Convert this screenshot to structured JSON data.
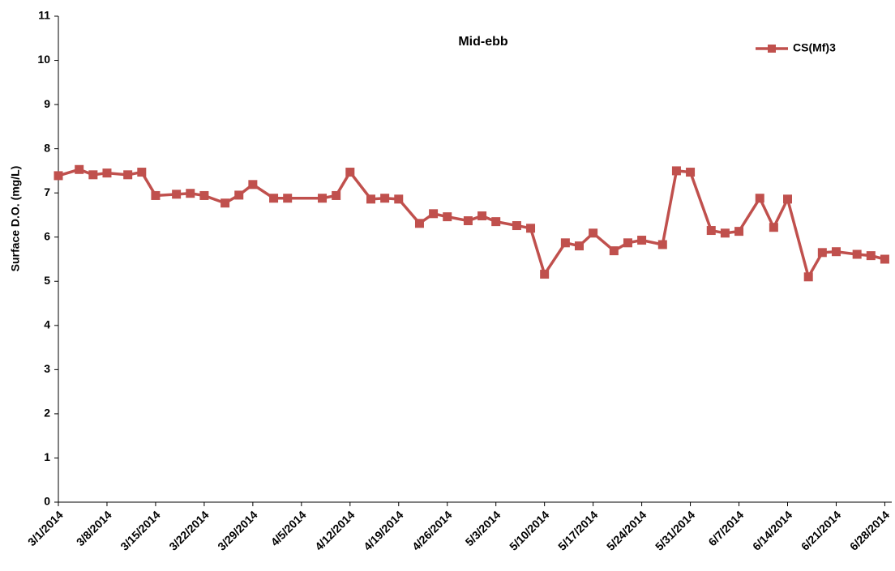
{
  "chart_data": {
    "type": "line",
    "title": "Mid-ebb",
    "y_label": "Surface D.O. (mg/L)",
    "x": [
      "2014-03-01",
      "2014-03-04",
      "2014-03-06",
      "2014-03-08",
      "2014-03-11",
      "2014-03-13",
      "2014-03-15",
      "2014-03-18",
      "2014-03-20",
      "2014-03-22",
      "2014-03-25",
      "2014-03-27",
      "2014-03-29",
      "2014-04-01",
      "2014-04-03",
      "2014-04-08",
      "2014-04-10",
      "2014-04-12",
      "2014-04-15",
      "2014-04-17",
      "2014-04-19",
      "2014-04-22",
      "2014-04-24",
      "2014-04-26",
      "2014-04-29",
      "2014-05-01",
      "2014-05-03",
      "2014-05-06",
      "2014-05-08",
      "2014-05-10",
      "2014-05-13",
      "2014-05-15",
      "2014-05-17",
      "2014-05-20",
      "2014-05-22",
      "2014-05-24",
      "2014-05-27",
      "2014-05-29",
      "2014-05-31",
      "2014-06-03",
      "2014-06-05",
      "2014-06-07",
      "2014-06-10",
      "2014-06-12",
      "2014-06-14",
      "2014-06-17",
      "2014-06-19",
      "2014-06-21",
      "2014-06-24",
      "2014-06-26",
      "2014-06-28"
    ],
    "series": [
      {
        "name": "CS(Mf)3",
        "color": "#c0504d",
        "values": [
          7.39,
          7.53,
          7.41,
          7.45,
          7.41,
          7.47,
          6.94,
          6.97,
          6.99,
          6.94,
          6.77,
          6.95,
          7.19,
          6.88,
          6.88,
          6.88,
          6.94,
          7.47,
          6.86,
          6.88,
          6.86,
          6.31,
          6.53,
          6.46,
          6.37,
          6.48,
          6.35,
          6.26,
          6.2,
          5.16,
          5.87,
          5.8,
          6.09,
          5.69,
          5.87,
          5.93,
          5.83,
          7.5,
          7.47,
          6.15,
          6.09,
          6.13,
          6.88,
          6.22,
          6.86,
          5.1,
          5.65,
          5.67,
          5.61,
          5.58,
          5.5
        ]
      }
    ],
    "xlim": [
      "2014-03-01",
      "2014-06-29"
    ],
    "xticks": [
      {
        "value": "2014-03-01",
        "label": "3/1/2014"
      },
      {
        "value": "2014-03-08",
        "label": "3/8/2014"
      },
      {
        "value": "2014-03-15",
        "label": "3/15/2014"
      },
      {
        "value": "2014-03-22",
        "label": "3/22/2014"
      },
      {
        "value": "2014-03-29",
        "label": "3/29/2014"
      },
      {
        "value": "2014-04-05",
        "label": "4/5/2014"
      },
      {
        "value": "2014-04-12",
        "label": "4/12/2014"
      },
      {
        "value": "2014-04-19",
        "label": "4/19/2014"
      },
      {
        "value": "2014-04-26",
        "label": "4/26/2014"
      },
      {
        "value": "2014-05-03",
        "label": "5/3/2014"
      },
      {
        "value": "2014-05-10",
        "label": "5/10/2014"
      },
      {
        "value": "2014-05-17",
        "label": "5/17/2014"
      },
      {
        "value": "2014-05-24",
        "label": "5/24/2014"
      },
      {
        "value": "2014-05-31",
        "label": "5/31/2014"
      },
      {
        "value": "2014-06-07",
        "label": "6/7/2014"
      },
      {
        "value": "2014-06-14",
        "label": "6/14/2014"
      },
      {
        "value": "2014-06-21",
        "label": "6/21/2014"
      },
      {
        "value": "2014-06-28",
        "label": "6/28/2014"
      }
    ],
    "ylim": [
      0,
      11
    ],
    "yticks": [
      0,
      1,
      2,
      3,
      4,
      5,
      6,
      7,
      8,
      9,
      10,
      11
    ],
    "grid": false,
    "legend": "top-right"
  }
}
